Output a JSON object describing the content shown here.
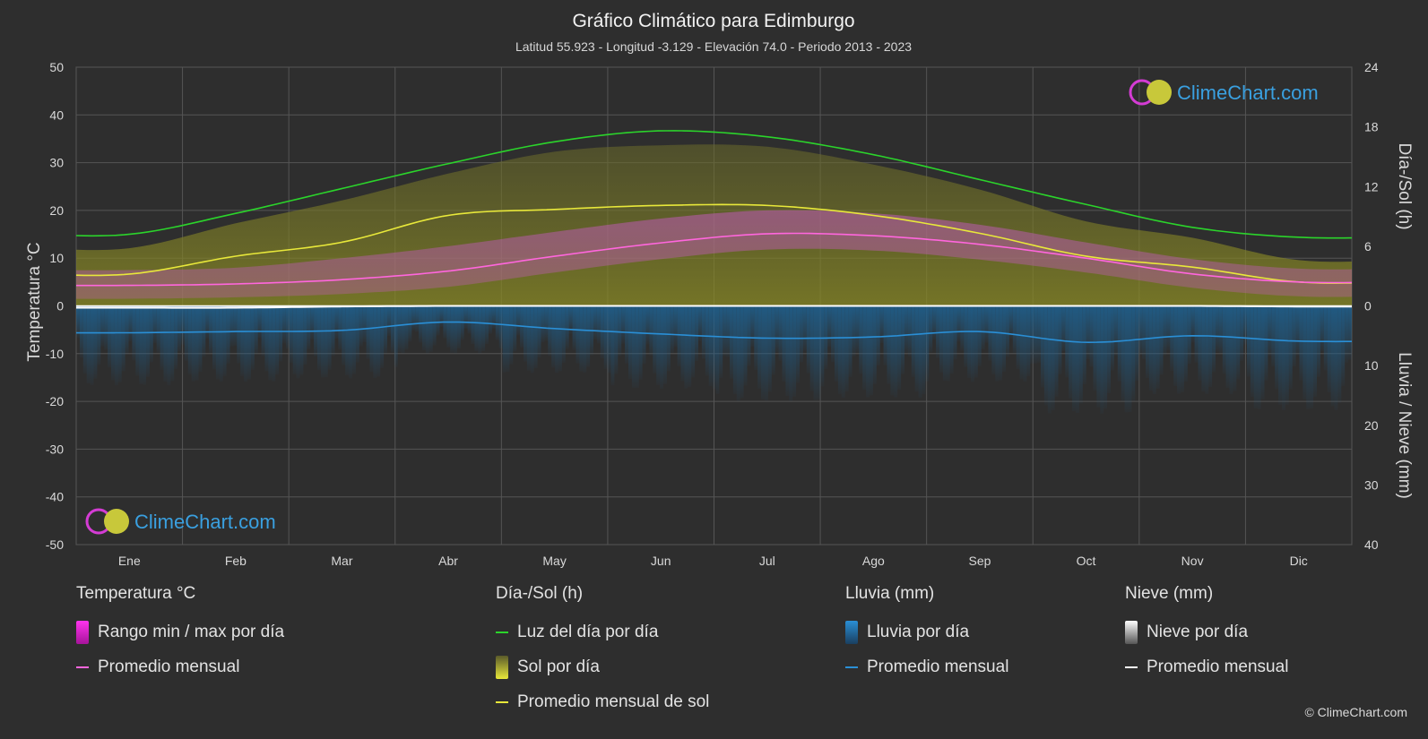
{
  "chart_data": {
    "type": "area",
    "title": "Gráfico Climático para Edimburgo",
    "subtitle": "Latitud 55.923 - Longitud -3.129 - Elevación 74.0 - Periodo 2013 - 2023",
    "categories": [
      "Ene",
      "Feb",
      "Mar",
      "Abr",
      "May",
      "Jun",
      "Jul",
      "Ago",
      "Sep",
      "Oct",
      "Nov",
      "Dic"
    ],
    "y_left": {
      "label": "Temperatura °C",
      "range": [
        -50,
        50
      ],
      "ticks": [
        "50",
        "40",
        "30",
        "20",
        "10",
        "0",
        "-10",
        "-20",
        "-30",
        "-40",
        "-50"
      ]
    },
    "y_right_top": {
      "label": "Día-/Sol (h)",
      "range": [
        0,
        24
      ],
      "ticks": [
        "24",
        "18",
        "12",
        "6",
        "0"
      ]
    },
    "y_right_bottom": {
      "label": "Lluvia / Nieve (mm)",
      "range": [
        0,
        40
      ],
      "ticks": [
        "0",
        "10",
        "20",
        "30",
        "40"
      ]
    },
    "grid": true,
    "series": [
      {
        "name": "Luz del día por día",
        "unit": "h",
        "color": "#2bd42b",
        "values": [
          7.2,
          9.3,
          11.8,
          14.3,
          16.5,
          17.6,
          17.0,
          15.2,
          12.7,
          10.2,
          7.9,
          6.9
        ]
      },
      {
        "name": "Promedio mensual de sol",
        "unit": "h",
        "color": "#e8e83a",
        "values": [
          3.2,
          5.0,
          6.4,
          9.1,
          9.7,
          10.1,
          10.1,
          9.1,
          7.3,
          5.0,
          3.9,
          2.4
        ]
      },
      {
        "name": "Promedio mensual",
        "unit": "°C",
        "color": "#ff66dd",
        "values": [
          4.3,
          4.6,
          5.5,
          7.3,
          10.4,
          13.2,
          15.1,
          14.7,
          12.9,
          10.0,
          6.7,
          5.0
        ]
      },
      {
        "name": "Lluvia promedio mensual",
        "unit": "mm",
        "color": "#2a8fd6",
        "values": [
          4.5,
          4.3,
          4.1,
          2.7,
          3.8,
          4.7,
          5.4,
          5.2,
          4.3,
          6.1,
          5.0,
          5.9
        ]
      },
      {
        "name": "Nieve promedio mensual",
        "unit": "mm",
        "color": "#ffffff",
        "values": [
          0.3,
          0.3,
          0.1,
          0,
          0,
          0,
          0,
          0,
          0,
          0,
          0,
          0.1
        ]
      }
    ],
    "temp_range": {
      "name": "Rango min / max por día",
      "min": [
        1.5,
        1.8,
        2.5,
        4.0,
        7.0,
        9.8,
        11.8,
        11.6,
        9.7,
        7.0,
        3.8,
        2.0
      ],
      "max": [
        7.5,
        8.0,
        10.0,
        12.5,
        15.5,
        18.3,
        20.0,
        19.4,
        17.0,
        13.3,
        9.8,
        7.8
      ]
    }
  },
  "legend": {
    "temperature": {
      "title": "Temperatura °C",
      "range_label": "Rango min / max por día",
      "avg_label": "Promedio mensual"
    },
    "sun": {
      "title": "Día-/Sol (h)",
      "daylight_label": "Luz del día por día",
      "sun_label": "Sol por día",
      "sun_avg_label": "Promedio mensual de sol"
    },
    "rain": {
      "title": "Lluvia (mm)",
      "rain_label": "Lluvia por día",
      "avg_label": "Promedio mensual"
    },
    "snow": {
      "title": "Nieve (mm)",
      "snow_label": "Nieve por día",
      "avg_label": "Promedio mensual"
    }
  },
  "brand": {
    "name": "ClimeChart.com",
    "copyright": "© ClimeChart.com"
  },
  "colors": {
    "background": "#2e2e2e",
    "grid": "#5a5a5a",
    "daylight": "#2bd42b",
    "sun": "#e8e83a",
    "temp": "#ff66dd",
    "rain": "#2a8fd6",
    "snow": "#ffffff",
    "brand": "#3aa0e0"
  }
}
